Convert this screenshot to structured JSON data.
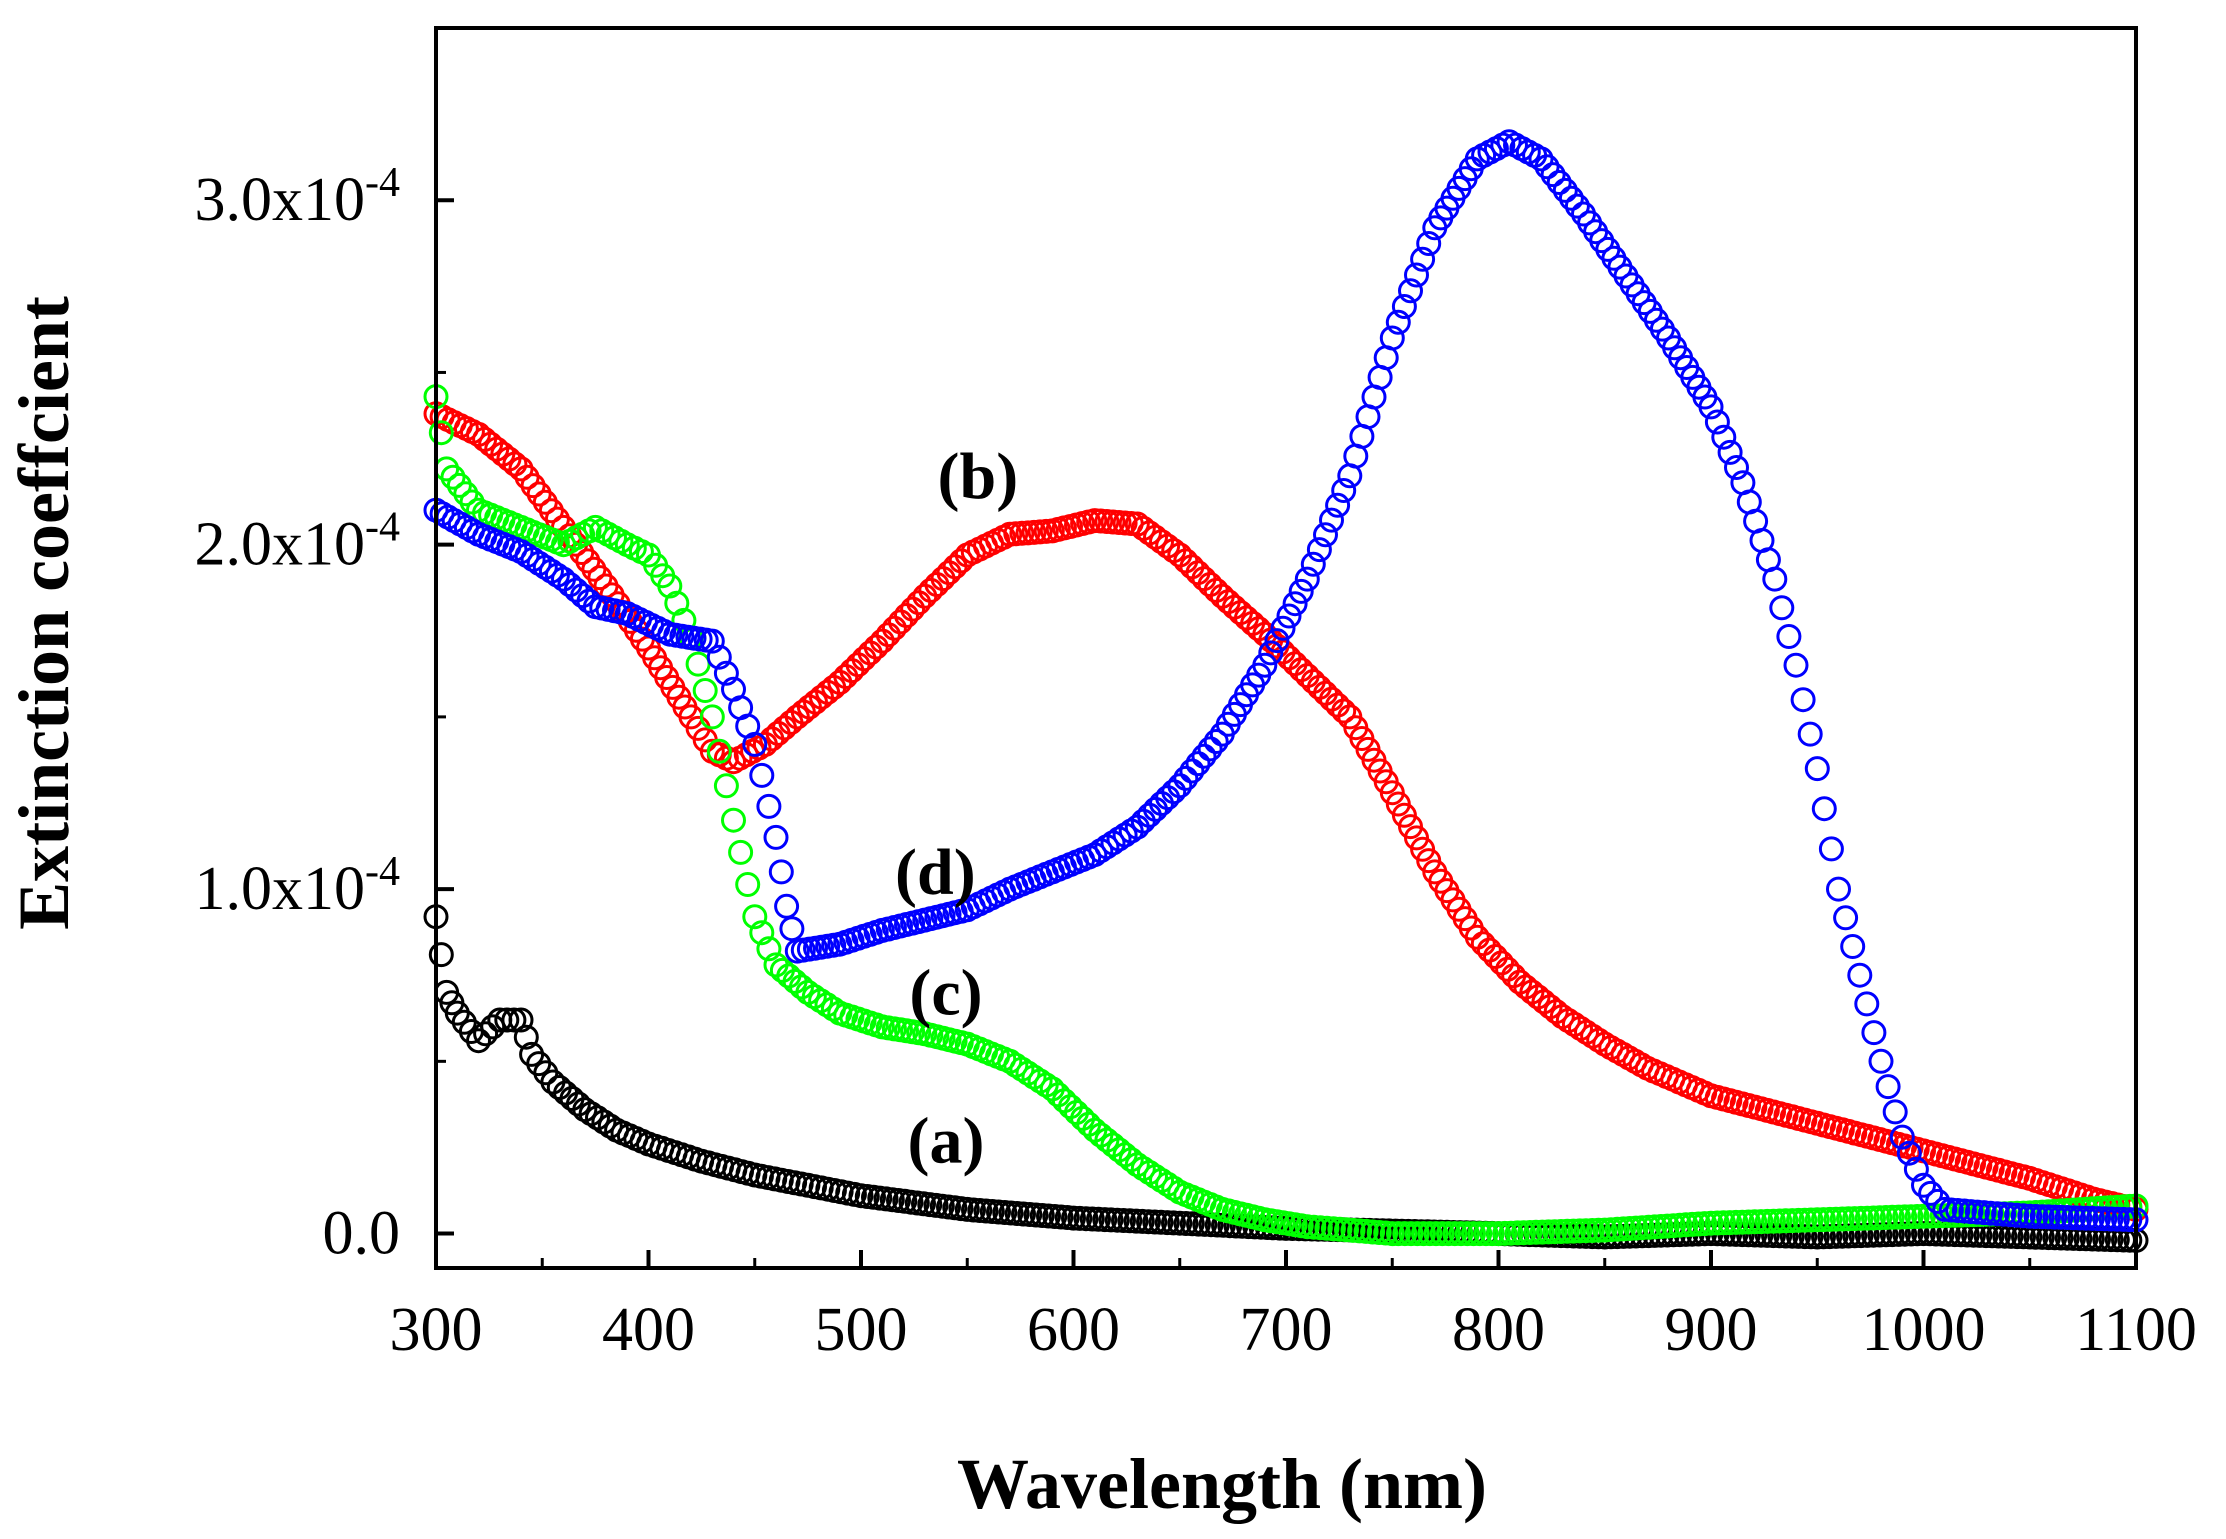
{
  "chart_data": {
    "type": "scatter",
    "title": "",
    "xlabel": "Wavelength (nm)",
    "ylabel": "Extinction coeffcient",
    "xlim": [
      300,
      1100
    ],
    "ylim": [
      -0.1,
      3.5
    ],
    "y_multiplier": "x10^-4",
    "xticks": [
      300,
      400,
      500,
      600,
      700,
      800,
      900,
      1000,
      1100
    ],
    "xtick_labels": [
      "300",
      "400",
      "500",
      "600",
      "700",
      "800",
      "900",
      "1000",
      "1100"
    ],
    "yticks": [
      0.0,
      1.0,
      2.0,
      3.0
    ],
    "ytick_mantissas": [
      "0.0",
      "1.0x10",
      "2.0x10",
      "3.0x10"
    ],
    "ytick_exponents": [
      "",
      "-4",
      "-4",
      "-4"
    ],
    "marker": "open-circle",
    "grid": false,
    "series": [
      {
        "name": "(a)",
        "color": "#000000",
        "points": [
          [
            300,
            0.92
          ],
          [
            305,
            0.7
          ],
          [
            310,
            0.64
          ],
          [
            320,
            0.56
          ],
          [
            330,
            0.62
          ],
          [
            340,
            0.62
          ],
          [
            345,
            0.52
          ],
          [
            355,
            0.44
          ],
          [
            370,
            0.36
          ],
          [
            385,
            0.3
          ],
          [
            400,
            0.26
          ],
          [
            425,
            0.21
          ],
          [
            450,
            0.17
          ],
          [
            475,
            0.14
          ],
          [
            500,
            0.11
          ],
          [
            550,
            0.07
          ],
          [
            600,
            0.045
          ],
          [
            650,
            0.03
          ],
          [
            700,
            0.015
          ],
          [
            800,
            0.0
          ],
          [
            850,
            -0.01
          ],
          [
            900,
            0.0
          ],
          [
            950,
            -0.01
          ],
          [
            1000,
            0.0
          ],
          [
            1050,
            -0.01
          ],
          [
            1100,
            -0.02
          ]
        ]
      },
      {
        "name": "(b)",
        "color": "#ff0000",
        "points": [
          [
            300,
            2.38
          ],
          [
            320,
            2.32
          ],
          [
            340,
            2.22
          ],
          [
            360,
            2.05
          ],
          [
            380,
            1.88
          ],
          [
            400,
            1.7
          ],
          [
            420,
            1.5
          ],
          [
            430,
            1.4
          ],
          [
            440,
            1.37
          ],
          [
            455,
            1.42
          ],
          [
            470,
            1.5
          ],
          [
            490,
            1.6
          ],
          [
            510,
            1.72
          ],
          [
            530,
            1.85
          ],
          [
            550,
            1.97
          ],
          [
            570,
            2.03
          ],
          [
            590,
            2.04
          ],
          [
            610,
            2.07
          ],
          [
            630,
            2.06
          ],
          [
            650,
            1.97
          ],
          [
            670,
            1.85
          ],
          [
            690,
            1.74
          ],
          [
            710,
            1.62
          ],
          [
            730,
            1.5
          ],
          [
            750,
            1.28
          ],
          [
            770,
            1.05
          ],
          [
            790,
            0.86
          ],
          [
            810,
            0.73
          ],
          [
            830,
            0.63
          ],
          [
            850,
            0.55
          ],
          [
            870,
            0.48
          ],
          [
            900,
            0.4
          ],
          [
            950,
            0.32
          ],
          [
            1000,
            0.24
          ],
          [
            1050,
            0.16
          ],
          [
            1080,
            0.1
          ],
          [
            1100,
            0.07
          ]
        ]
      },
      {
        "name": "(c)",
        "color": "#00ff00",
        "points": [
          [
            300,
            2.43
          ],
          [
            305,
            2.22
          ],
          [
            320,
            2.1
          ],
          [
            340,
            2.05
          ],
          [
            360,
            2.0
          ],
          [
            375,
            2.05
          ],
          [
            390,
            2.0
          ],
          [
            400,
            1.97
          ],
          [
            410,
            1.88
          ],
          [
            420,
            1.73
          ],
          [
            430,
            1.5
          ],
          [
            440,
            1.2
          ],
          [
            450,
            0.92
          ],
          [
            460,
            0.78
          ],
          [
            475,
            0.7
          ],
          [
            490,
            0.64
          ],
          [
            510,
            0.6
          ],
          [
            530,
            0.58
          ],
          [
            550,
            0.55
          ],
          [
            570,
            0.5
          ],
          [
            590,
            0.42
          ],
          [
            610,
            0.3
          ],
          [
            630,
            0.2
          ],
          [
            650,
            0.12
          ],
          [
            670,
            0.07
          ],
          [
            690,
            0.04
          ],
          [
            710,
            0.02
          ],
          [
            750,
            0.0
          ],
          [
            800,
            0.0
          ],
          [
            850,
            0.01
          ],
          [
            900,
            0.03
          ],
          [
            950,
            0.04
          ],
          [
            1000,
            0.05
          ],
          [
            1050,
            0.06
          ],
          [
            1100,
            0.08
          ]
        ]
      },
      {
        "name": "(d)",
        "color": "#0000ff",
        "points": [
          [
            300,
            2.1
          ],
          [
            320,
            2.03
          ],
          [
            340,
            1.98
          ],
          [
            360,
            1.9
          ],
          [
            375,
            1.82
          ],
          [
            390,
            1.8
          ],
          [
            410,
            1.74
          ],
          [
            430,
            1.72
          ],
          [
            440,
            1.58
          ],
          [
            450,
            1.42
          ],
          [
            460,
            1.15
          ],
          [
            465,
            0.95
          ],
          [
            470,
            0.82
          ],
          [
            490,
            0.84
          ],
          [
            510,
            0.88
          ],
          [
            530,
            0.91
          ],
          [
            550,
            0.94
          ],
          [
            570,
            1.0
          ],
          [
            590,
            1.05
          ],
          [
            610,
            1.1
          ],
          [
            630,
            1.18
          ],
          [
            650,
            1.3
          ],
          [
            670,
            1.45
          ],
          [
            690,
            1.65
          ],
          [
            710,
            1.9
          ],
          [
            730,
            2.2
          ],
          [
            750,
            2.6
          ],
          [
            770,
            2.92
          ],
          [
            790,
            3.12
          ],
          [
            805,
            3.17
          ],
          [
            820,
            3.12
          ],
          [
            840,
            2.96
          ],
          [
            860,
            2.78
          ],
          [
            880,
            2.6
          ],
          [
            900,
            2.4
          ],
          [
            915,
            2.18
          ],
          [
            930,
            1.9
          ],
          [
            940,
            1.65
          ],
          [
            950,
            1.35
          ],
          [
            960,
            1.0
          ],
          [
            970,
            0.75
          ],
          [
            980,
            0.5
          ],
          [
            990,
            0.28
          ],
          [
            1000,
            0.14
          ],
          [
            1010,
            0.07
          ],
          [
            1050,
            0.05
          ],
          [
            1100,
            0.04
          ]
        ]
      }
    ],
    "annotations": [
      {
        "text": "(a)",
        "x": 540,
        "y": 0.27
      },
      {
        "text": "(b)",
        "x": 555,
        "y": 2.2
      },
      {
        "text": "(c)",
        "x": 540,
        "y": 0.7
      },
      {
        "text": "(d)",
        "x": 535,
        "y": 1.05
      }
    ]
  }
}
